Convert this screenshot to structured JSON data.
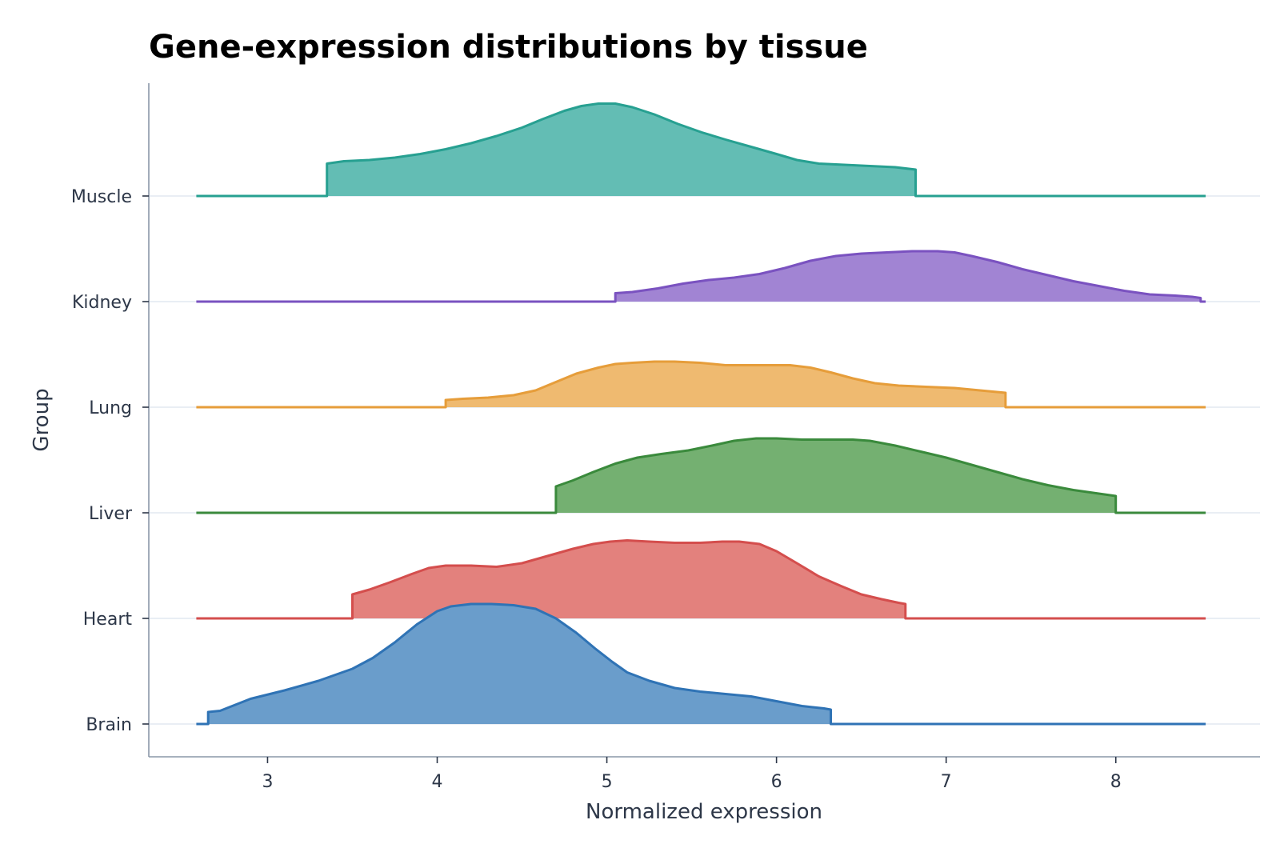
{
  "chart_data": {
    "type": "area",
    "subtype": "ridgeline",
    "title": "Gene-expression distributions by tissue",
    "xlabel": "Normalized expression",
    "ylabel": "Group",
    "xlim": [
      2.3,
      8.85
    ],
    "xticks": [
      3,
      4,
      5,
      6,
      7,
      8
    ],
    "baseline_x_range": [
      2.58,
      8.53
    ],
    "grid": "horizontal baselines only",
    "legend": "none",
    "categories": [
      "Brain",
      "Heart",
      "Liver",
      "Lung",
      "Kidney",
      "Muscle"
    ],
    "series": [
      {
        "name": "Brain",
        "color": "#2f73b5",
        "fill": "#6a9dcb",
        "range": [
          2.65,
          6.32
        ],
        "density": [
          [
            2.65,
            0.1
          ],
          [
            2.72,
            0.11
          ],
          [
            2.9,
            0.21
          ],
          [
            3.1,
            0.28
          ],
          [
            3.3,
            0.36
          ],
          [
            3.5,
            0.46
          ],
          [
            3.62,
            0.55
          ],
          [
            3.75,
            0.68
          ],
          [
            3.88,
            0.83
          ],
          [
            4.0,
            0.94
          ],
          [
            4.08,
            0.98
          ],
          [
            4.2,
            1.0
          ],
          [
            4.32,
            1.0
          ],
          [
            4.45,
            0.99
          ],
          [
            4.58,
            0.96
          ],
          [
            4.7,
            0.88
          ],
          [
            4.82,
            0.76
          ],
          [
            4.93,
            0.63
          ],
          [
            5.03,
            0.52
          ],
          [
            5.12,
            0.43
          ],
          [
            5.25,
            0.36
          ],
          [
            5.4,
            0.3
          ],
          [
            5.55,
            0.27
          ],
          [
            5.7,
            0.25
          ],
          [
            5.85,
            0.23
          ],
          [
            6.0,
            0.19
          ],
          [
            6.15,
            0.15
          ],
          [
            6.28,
            0.13
          ],
          [
            6.32,
            0.12
          ]
        ]
      },
      {
        "name": "Heart",
        "color": "#d44e4d",
        "fill": "#e3817d",
        "range": [
          3.5,
          6.76
        ],
        "density": [
          [
            3.5,
            0.2
          ],
          [
            3.6,
            0.24
          ],
          [
            3.72,
            0.3
          ],
          [
            3.85,
            0.37
          ],
          [
            3.95,
            0.42
          ],
          [
            4.05,
            0.44
          ],
          [
            4.2,
            0.44
          ],
          [
            4.35,
            0.43
          ],
          [
            4.5,
            0.46
          ],
          [
            4.65,
            0.52
          ],
          [
            4.8,
            0.58
          ],
          [
            4.92,
            0.62
          ],
          [
            5.02,
            0.64
          ],
          [
            5.12,
            0.65
          ],
          [
            5.25,
            0.64
          ],
          [
            5.4,
            0.63
          ],
          [
            5.55,
            0.63
          ],
          [
            5.68,
            0.64
          ],
          [
            5.78,
            0.64
          ],
          [
            5.9,
            0.62
          ],
          [
            6.0,
            0.56
          ],
          [
            6.12,
            0.46
          ],
          [
            6.25,
            0.35
          ],
          [
            6.38,
            0.27
          ],
          [
            6.5,
            0.2
          ],
          [
            6.62,
            0.16
          ],
          [
            6.72,
            0.13
          ],
          [
            6.76,
            0.12
          ]
        ]
      },
      {
        "name": "Liver",
        "color": "#3a8a3c",
        "fill": "#74b071",
        "range": [
          4.7,
          8.0
        ],
        "density": [
          [
            4.7,
            0.22
          ],
          [
            4.8,
            0.27
          ],
          [
            4.92,
            0.34
          ],
          [
            5.05,
            0.41
          ],
          [
            5.18,
            0.46
          ],
          [
            5.32,
            0.49
          ],
          [
            5.48,
            0.52
          ],
          [
            5.62,
            0.56
          ],
          [
            5.75,
            0.6
          ],
          [
            5.88,
            0.62
          ],
          [
            6.0,
            0.62
          ],
          [
            6.15,
            0.61
          ],
          [
            6.3,
            0.61
          ],
          [
            6.45,
            0.61
          ],
          [
            6.55,
            0.6
          ],
          [
            6.7,
            0.56
          ],
          [
            6.85,
            0.51
          ],
          [
            7.0,
            0.46
          ],
          [
            7.15,
            0.4
          ],
          [
            7.3,
            0.34
          ],
          [
            7.45,
            0.28
          ],
          [
            7.6,
            0.23
          ],
          [
            7.75,
            0.19
          ],
          [
            7.9,
            0.16
          ],
          [
            8.0,
            0.14
          ]
        ]
      },
      {
        "name": "Lung",
        "color": "#e69d3a",
        "fill": "#efba70",
        "range": [
          4.05,
          7.35
        ],
        "density": [
          [
            4.05,
            0.06
          ],
          [
            4.15,
            0.07
          ],
          [
            4.3,
            0.08
          ],
          [
            4.45,
            0.1
          ],
          [
            4.58,
            0.14
          ],
          [
            4.7,
            0.21
          ],
          [
            4.82,
            0.28
          ],
          [
            4.95,
            0.33
          ],
          [
            5.05,
            0.36
          ],
          [
            5.15,
            0.37
          ],
          [
            5.28,
            0.38
          ],
          [
            5.4,
            0.38
          ],
          [
            5.55,
            0.37
          ],
          [
            5.7,
            0.35
          ],
          [
            5.8,
            0.35
          ],
          [
            5.95,
            0.35
          ],
          [
            6.08,
            0.35
          ],
          [
            6.2,
            0.33
          ],
          [
            6.32,
            0.29
          ],
          [
            6.45,
            0.24
          ],
          [
            6.58,
            0.2
          ],
          [
            6.72,
            0.18
          ],
          [
            6.88,
            0.17
          ],
          [
            7.05,
            0.16
          ],
          [
            7.2,
            0.14
          ],
          [
            7.35,
            0.12
          ]
        ]
      },
      {
        "name": "Kidney",
        "color": "#7a52c0",
        "fill": "#a184d3",
        "range": [
          5.05,
          8.5
        ],
        "density": [
          [
            5.05,
            0.07
          ],
          [
            5.15,
            0.08
          ],
          [
            5.3,
            0.11
          ],
          [
            5.45,
            0.15
          ],
          [
            5.6,
            0.18
          ],
          [
            5.75,
            0.2
          ],
          [
            5.9,
            0.23
          ],
          [
            6.05,
            0.28
          ],
          [
            6.2,
            0.34
          ],
          [
            6.35,
            0.38
          ],
          [
            6.5,
            0.4
          ],
          [
            6.65,
            0.41
          ],
          [
            6.8,
            0.42
          ],
          [
            6.95,
            0.42
          ],
          [
            7.05,
            0.41
          ],
          [
            7.15,
            0.38
          ],
          [
            7.3,
            0.33
          ],
          [
            7.45,
            0.27
          ],
          [
            7.6,
            0.22
          ],
          [
            7.75,
            0.17
          ],
          [
            7.9,
            0.13
          ],
          [
            8.05,
            0.09
          ],
          [
            8.2,
            0.06
          ],
          [
            8.35,
            0.05
          ],
          [
            8.45,
            0.04
          ],
          [
            8.5,
            0.03
          ]
        ]
      },
      {
        "name": "Muscle",
        "color": "#27a091",
        "fill": "#63bdb4",
        "range": [
          3.35,
          6.82
        ],
        "density": [
          [
            3.35,
            0.27
          ],
          [
            3.45,
            0.29
          ],
          [
            3.6,
            0.3
          ],
          [
            3.75,
            0.32
          ],
          [
            3.9,
            0.35
          ],
          [
            4.05,
            0.39
          ],
          [
            4.2,
            0.44
          ],
          [
            4.35,
            0.5
          ],
          [
            4.5,
            0.57
          ],
          [
            4.62,
            0.64
          ],
          [
            4.75,
            0.71
          ],
          [
            4.85,
            0.75
          ],
          [
            4.95,
            0.77
          ],
          [
            5.05,
            0.77
          ],
          [
            5.15,
            0.74
          ],
          [
            5.28,
            0.68
          ],
          [
            5.42,
            0.6
          ],
          [
            5.56,
            0.53
          ],
          [
            5.7,
            0.47
          ],
          [
            5.85,
            0.41
          ],
          [
            6.0,
            0.35
          ],
          [
            6.12,
            0.3
          ],
          [
            6.25,
            0.27
          ],
          [
            6.4,
            0.26
          ],
          [
            6.55,
            0.25
          ],
          [
            6.7,
            0.24
          ],
          [
            6.82,
            0.22
          ]
        ]
      }
    ]
  }
}
